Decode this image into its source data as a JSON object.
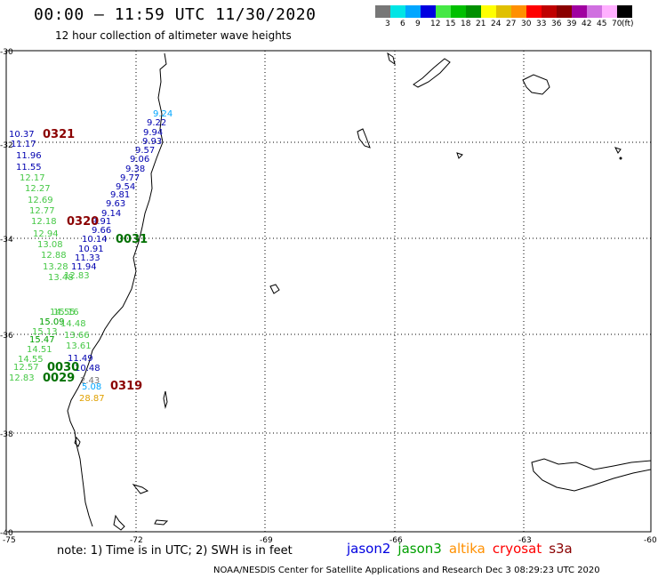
{
  "header": {
    "title": "00:00 — 11:59 UTC 11/30/2020",
    "subtitle": "12 hour collection of altimeter wave heights"
  },
  "colorbar": {
    "colors": [
      "#777777",
      "#00e5e5",
      "#00a6ff",
      "#0000e0",
      "#45e845",
      "#00c000",
      "#009000",
      "#ffff00",
      "#e0c000",
      "#ff9000",
      "#ff0000",
      "#c00000",
      "#8a0000",
      "#a000a0",
      "#d070e0",
      "#ffb0ff",
      "#000000"
    ],
    "labels": [
      "3",
      "6",
      "9",
      "12",
      "15",
      "18",
      "21",
      "24",
      "27",
      "30",
      "33",
      "36",
      "39",
      "42",
      "45",
      "70",
      "(ft)"
    ]
  },
  "axes": {
    "lat_labels": [
      "-30",
      "-32",
      "-34",
      "-36",
      "-38",
      "-40"
    ],
    "lon_labels": [
      "-75",
      "-72",
      "-69",
      "-66",
      "-63",
      "-60"
    ]
  },
  "times": [
    {
      "text": "0321",
      "color": "#8a0000"
    },
    {
      "text": "0320",
      "color": "#8a0000"
    },
    {
      "text": "0031",
      "color": "#007000"
    },
    {
      "text": "0030",
      "color": "#007000"
    },
    {
      "text": "0029",
      "color": "#007000"
    },
    {
      "text": "0319",
      "color": "#8a0000"
    }
  ],
  "wave_values": [
    {
      "v": "9.24",
      "c": "#00a6ff"
    },
    {
      "v": "9.22",
      "c": "#0000b0"
    },
    {
      "v": "9.94",
      "c": "#0000b0"
    },
    {
      "v": "9.93",
      "c": "#0000b0"
    },
    {
      "v": "9.57",
      "c": "#0000b0"
    },
    {
      "v": "9.06",
      "c": "#0000b0"
    },
    {
      "v": "9.38",
      "c": "#0000b0"
    },
    {
      "v": "9.77",
      "c": "#0000b0"
    },
    {
      "v": "9.54",
      "c": "#0000b0"
    },
    {
      "v": "9.81",
      "c": "#0000b0"
    },
    {
      "v": "9.63",
      "c": "#0000b0"
    },
    {
      "v": "9.14",
      "c": "#0000b0"
    },
    {
      "v": "9.91",
      "c": "#0000b0"
    },
    {
      "v": "9.66",
      "c": "#0000b0"
    },
    {
      "v": "10.14",
      "c": "#0000b0"
    },
    {
      "v": "10.91",
      "c": "#0000b0"
    },
    {
      "v": "11.33",
      "c": "#0000b0"
    },
    {
      "v": "11.94",
      "c": "#0000b0"
    },
    {
      "v": "10.37",
      "c": "#0000b0"
    },
    {
      "v": "11.17",
      "c": "#0000b0"
    },
    {
      "v": "11.96",
      "c": "#0000b0"
    },
    {
      "v": "11.55",
      "c": "#0000b0"
    },
    {
      "v": "12.17",
      "c": "#45c845"
    },
    {
      "v": "12.27",
      "c": "#45c845"
    },
    {
      "v": "12.69",
      "c": "#45c845"
    },
    {
      "v": "12.77",
      "c": "#45c845"
    },
    {
      "v": "12.18",
      "c": "#45c845"
    },
    {
      "v": "12.94",
      "c": "#45c845"
    },
    {
      "v": "13.08",
      "c": "#45c845"
    },
    {
      "v": "12.88",
      "c": "#45c845"
    },
    {
      "v": "13.28",
      "c": "#45c845"
    },
    {
      "v": "13.48",
      "c": "#45c845"
    },
    {
      "v": "12.83",
      "c": "#45c845"
    },
    {
      "v": "15.16",
      "c": "#45c845"
    },
    {
      "v": "14.55",
      "c": "#45c845"
    },
    {
      "v": "15.09",
      "c": "#00a000"
    },
    {
      "v": "15.13",
      "c": "#45c845"
    },
    {
      "v": "14.48",
      "c": "#45c845"
    },
    {
      "v": "15.47",
      "c": "#00a000"
    },
    {
      "v": "13.66",
      "c": "#45c845"
    },
    {
      "v": "14.51",
      "c": "#45c845"
    },
    {
      "v": "13.61",
      "c": "#45c845"
    },
    {
      "v": "14.55",
      "c": "#45c845"
    },
    {
      "v": "12.57",
      "c": "#45c845"
    },
    {
      "v": "11.49",
      "c": "#0000b0"
    },
    {
      "v": "10.48",
      "c": "#0000b0"
    },
    {
      "v": "12.83",
      "c": "#45c845"
    },
    {
      "v": "2.43",
      "c": "#777777"
    },
    {
      "v": "5.08",
      "c": "#00a6ff"
    },
    {
      "v": "28.87",
      "c": "#e0a000"
    }
  ],
  "footer": {
    "note": "note:  1) Time is in UTC;  2) SWH is in feet",
    "legend": [
      {
        "name": "jason2",
        "color": "#0000e0"
      },
      {
        "name": "jason3",
        "color": "#00a000"
      },
      {
        "name": "altika",
        "color": "#ff9000"
      },
      {
        "name": "cryosat",
        "color": "#ff0000"
      },
      {
        "name": "s3a",
        "color": "#8a0000"
      }
    ],
    "credit": "NOAA/NESDIS Center for Satellite Applications and Research   Dec  3 08:29:23 UTC 2020"
  }
}
